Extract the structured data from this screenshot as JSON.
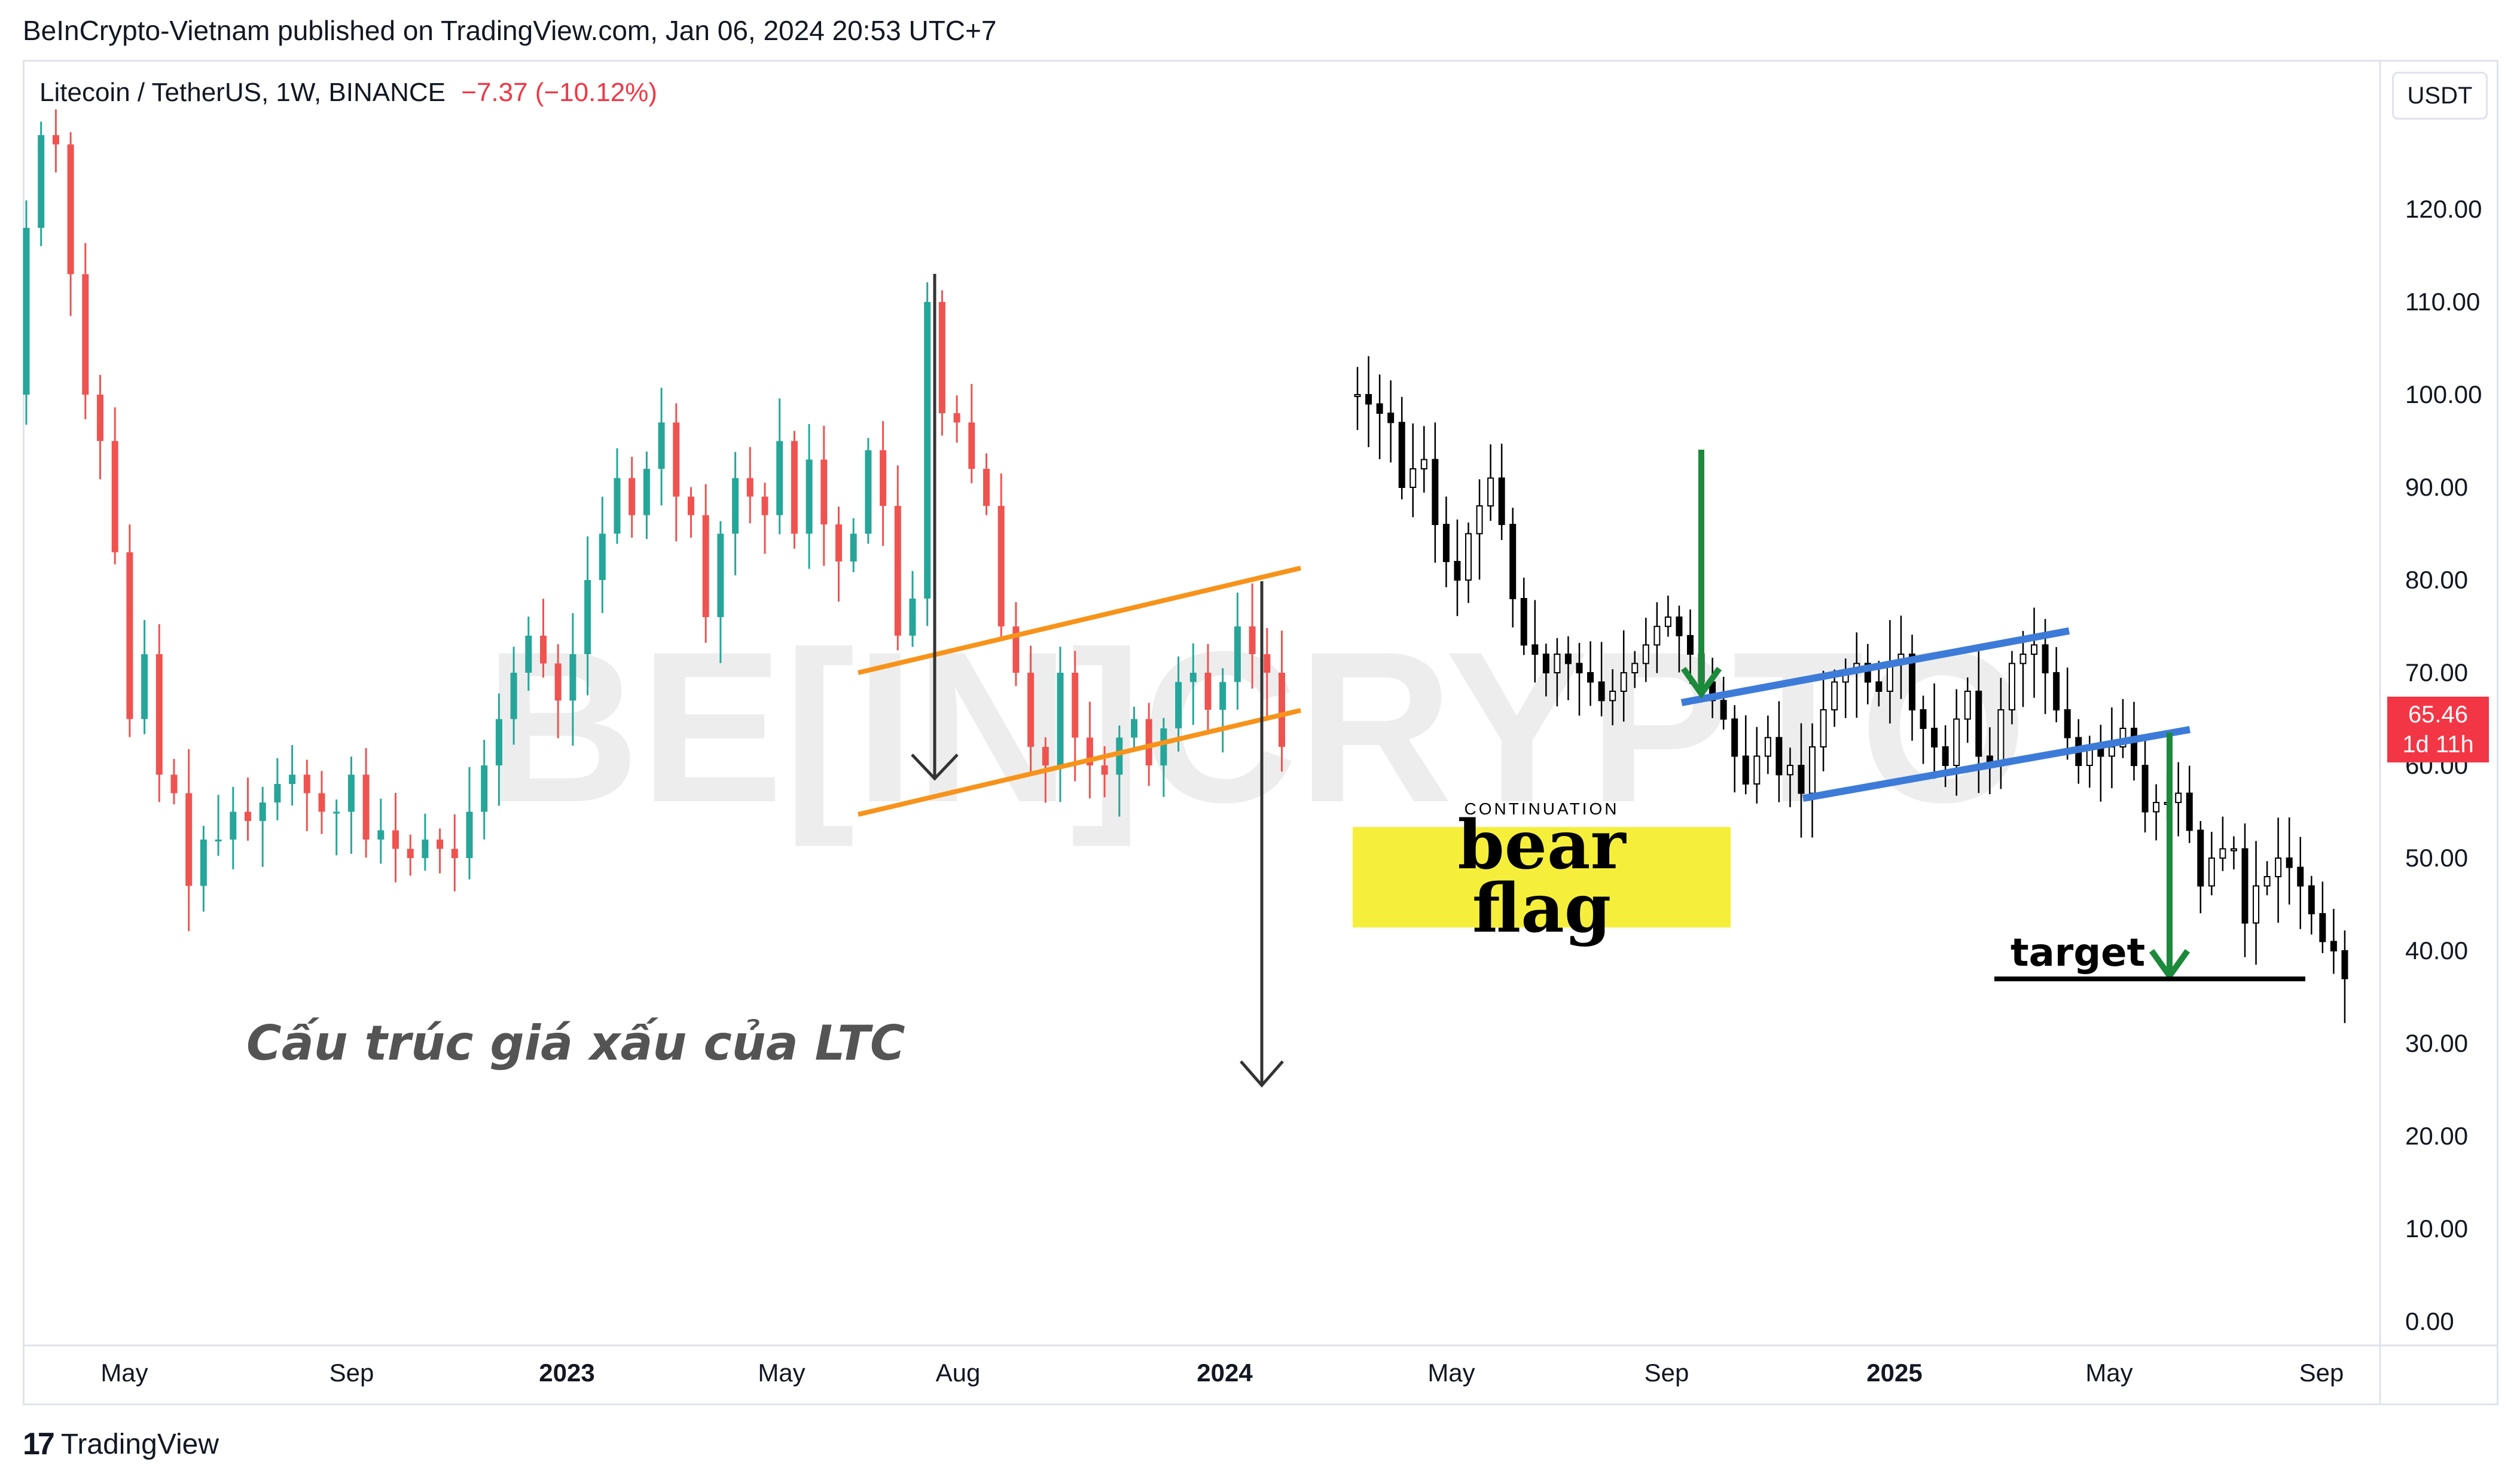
{
  "header": {
    "publisher_line": "BeInCrypto-Vietnam published on TradingView.com, Jan 06, 2024 20:53 UTC+7"
  },
  "legend": {
    "symbol": "Litecoin / TetherUS, 1W, BINANCE",
    "change": "−7.37 (−10.12%)"
  },
  "price_scale": {
    "currency": "USDT",
    "last_price": "65.46",
    "countdown": "1d 11h"
  },
  "watermark": "BE[IN]CRYPTO",
  "annotations": {
    "caption": "Cấu trúc giá xấu của LTC",
    "pattern_small": "CONTINUATION",
    "pattern_title_1": "bear",
    "pattern_title_2": "flag",
    "target_label": "target"
  },
  "footer": {
    "brand": "TradingView",
    "logo": "tradingview-logo"
  },
  "colors": {
    "up": "#26a69a",
    "down": "#ef5350",
    "channel": "#f7931a",
    "flag": "#3d7bd9",
    "arrow_green": "#1b8a3a",
    "highlight": "#f5ef3b"
  },
  "chart_data": {
    "type": "candlestick",
    "ylim": [
      0,
      130
    ],
    "y_ticks": [
      "0.00",
      "10.00",
      "20.00",
      "30.00",
      "40.00",
      "50.00",
      "60.00",
      "70.00",
      "80.00",
      "90.00",
      "100.00",
      "110.00",
      "120.00"
    ],
    "x_ticks": [
      {
        "label": "May",
        "bold": false
      },
      {
        "label": "Sep",
        "bold": false
      },
      {
        "label": "2023",
        "bold": true
      },
      {
        "label": "May",
        "bold": false
      },
      {
        "label": "Aug",
        "bold": false
      },
      {
        "label": "2024",
        "bold": true
      },
      {
        "label": "May",
        "bold": false
      },
      {
        "label": "Sep",
        "bold": false
      },
      {
        "label": "2025",
        "bold": true
      },
      {
        "label": "May",
        "bold": false
      },
      {
        "label": "Sep",
        "bold": false
      }
    ],
    "series": [
      {
        "closes": [
          118,
          128,
          127,
          113,
          100,
          95,
          83,
          65,
          72,
          59,
          57,
          47,
          52,
          52,
          55,
          54,
          56,
          58,
          59,
          57,
          55,
          55,
          59,
          52,
          53,
          51,
          50,
          52,
          51,
          50,
          55,
          60,
          65,
          70,
          74,
          71,
          67,
          72,
          80,
          85,
          91,
          87,
          92,
          97,
          89,
          87,
          76,
          85,
          91,
          89,
          87,
          95,
          85,
          93,
          86,
          82,
          85,
          94,
          88,
          74,
          78,
          110,
          98,
          97,
          92,
          88,
          75,
          70,
          62,
          60,
          70,
          63,
          60,
          59,
          63,
          65,
          60,
          64,
          69,
          70,
          66,
          69,
          75,
          72,
          70,
          62
        ]
      }
    ],
    "projection_series": [
      {
        "closes": [
          100,
          99,
          98,
          97,
          90,
          92,
          93,
          86,
          82,
          80,
          85,
          88,
          91,
          86,
          78,
          73,
          72,
          70,
          72,
          71,
          70,
          69,
          67,
          68,
          70,
          71,
          73,
          75,
          76,
          74,
          72,
          69,
          67,
          65,
          61,
          58,
          61,
          63,
          59,
          60,
          57,
          62,
          66,
          69,
          70,
          71,
          69,
          68,
          71,
          72,
          66,
          64,
          62,
          60,
          65,
          68,
          61,
          60,
          66,
          71,
          72,
          73,
          70,
          66,
          63,
          60,
          62,
          61,
          62,
          64,
          60,
          55,
          56,
          56,
          57,
          53,
          47,
          50,
          51,
          51,
          43,
          47,
          48,
          50,
          49,
          47,
          44,
          41,
          40,
          37
        ]
      }
    ]
  }
}
